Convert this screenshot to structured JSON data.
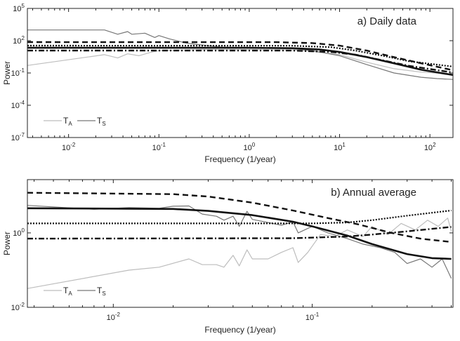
{
  "chart_data": [
    {
      "type": "line",
      "title": "a) Daily data",
      "xlabel": "Frequency (1/year)",
      "ylabel": "Power",
      "xscale": "log",
      "yscale": "log",
      "xlim": [
        0.0035,
        180
      ],
      "ylim": [
        1e-07,
        100000.0
      ],
      "xticks": [
        0.01,
        0.1,
        1,
        10,
        100
      ],
      "xtick_labels": [
        [
          "10",
          "-2"
        ],
        [
          "10",
          "-1"
        ],
        [
          "10",
          "0"
        ],
        [
          "10",
          "1"
        ],
        [
          "10",
          "2"
        ]
      ],
      "yticks": [
        100000.0,
        100,
        0.1,
        0.0001,
        1e-07
      ],
      "ytick_labels": [
        [
          "10",
          "5"
        ],
        [
          "10",
          "2"
        ],
        [
          "10",
          "-1"
        ],
        [
          "10",
          "-4"
        ],
        [
          "10",
          "-7"
        ]
      ],
      "legend": {
        "placement": "bottom-left",
        "entries": [
          {
            "base": "T",
            "sub": "A"
          },
          {
            "base": "T",
            "sub": "S"
          }
        ]
      },
      "series": [
        {
          "name": "TA",
          "style": "light",
          "color": "#bdbdbd",
          "points": [
            [
              0.0035,
              0.5
            ],
            [
              0.025,
              5
            ],
            [
              0.035,
              2.5
            ],
            [
              0.045,
              6
            ],
            [
              0.06,
              4
            ],
            [
              0.08,
              8
            ],
            [
              0.1,
              12
            ],
            [
              0.3,
              15
            ],
            [
              1,
              15
            ],
            [
              3,
              14
            ],
            [
              5,
              10
            ],
            [
              10,
              5
            ],
            [
              20,
              1
            ],
            [
              40,
              0.25
            ],
            [
              80,
              0.12
            ],
            [
              180,
              0.08
            ]
          ]
        },
        {
          "name": "TS",
          "style": "dark",
          "color": "#777777",
          "points": [
            [
              0.0035,
              1000
            ],
            [
              0.025,
              1000
            ],
            [
              0.035,
              400
            ],
            [
              0.045,
              700
            ],
            [
              0.05,
              400
            ],
            [
              0.07,
              500
            ],
            [
              0.09,
              200
            ],
            [
              0.1,
              300
            ],
            [
              0.13,
              150
            ],
            [
              0.2,
              60
            ],
            [
              0.3,
              40
            ],
            [
              0.5,
              25
            ],
            [
              1,
              22
            ],
            [
              3,
              18
            ],
            [
              5,
              12
            ],
            [
              10,
              4
            ],
            [
              20,
              0.6
            ],
            [
              40,
              0.1
            ],
            [
              80,
              0.04
            ],
            [
              120,
              0.03
            ],
            [
              180,
              0.025
            ]
          ]
        },
        {
          "style": "dashed",
          "color": "#111111",
          "points": [
            [
              0.0035,
              74
            ],
            [
              2,
              73
            ],
            [
              5,
              60
            ],
            [
              10,
              35
            ],
            [
              20,
              12
            ],
            [
              40,
              3
            ],
            [
              80,
              0.8
            ],
            [
              180,
              0.18
            ]
          ]
        },
        {
          "style": "dotted",
          "color": "#111111",
          "points": [
            [
              0.0035,
              35
            ],
            [
              3,
              34
            ],
            [
              8,
              25
            ],
            [
              15,
              12
            ],
            [
              30,
              4
            ],
            [
              60,
              1.2
            ],
            [
              180,
              0.39
            ]
          ]
        },
        {
          "style": "dashdot",
          "color": "#111111",
          "points": [
            [
              0.0035,
              12
            ],
            [
              3,
              12
            ],
            [
              8,
              9
            ],
            [
              15,
              5
            ],
            [
              30,
              1.5
            ],
            [
              60,
              0.45
            ],
            [
              180,
              0.11
            ]
          ]
        },
        {
          "style": "solid",
          "color": "#111111",
          "points": [
            [
              0.0035,
              22
            ],
            [
              1,
              22
            ],
            [
              3,
              20
            ],
            [
              6,
              15
            ],
            [
              10,
              9
            ],
            [
              20,
              3
            ],
            [
              40,
              0.8
            ],
            [
              80,
              0.2
            ],
            [
              180,
              0.065
            ]
          ]
        }
      ]
    },
    {
      "type": "line",
      "title": "b) Annual average",
      "xlabel": "Frequency (1/year)",
      "ylabel": "Power",
      "xscale": "log",
      "yscale": "log",
      "xlim": [
        0.0037,
        0.51
      ],
      "ylim": [
        0.01,
        27
      ],
      "xticks": [
        0.01,
        0.1
      ],
      "xtick_labels": [
        [
          "10",
          "-2"
        ],
        [
          "10",
          "-1"
        ]
      ],
      "yticks": [
        1,
        0.01
      ],
      "ytick_labels": [
        [
          "10",
          "0"
        ],
        [
          "10",
          "-2"
        ]
      ],
      "legend": {
        "placement": "bottom-left",
        "entries": [
          {
            "base": "T",
            "sub": "A"
          },
          {
            "base": "T",
            "sub": "S"
          }
        ]
      },
      "series": [
        {
          "name": "TA",
          "style": "light",
          "color": "#bdbdbd",
          "points": [
            [
              0.0037,
              0.032
            ],
            [
              0.012,
              0.1
            ],
            [
              0.017,
              0.12
            ],
            [
              0.024,
              0.2
            ],
            [
              0.028,
              0.14
            ],
            [
              0.033,
              0.14
            ],
            [
              0.036,
              0.12
            ],
            [
              0.04,
              0.25
            ],
            [
              0.043,
              0.13
            ],
            [
              0.047,
              0.35
            ],
            [
              0.05,
              0.2
            ],
            [
              0.06,
              0.2
            ],
            [
              0.07,
              0.3
            ],
            [
              0.08,
              0.4
            ],
            [
              0.085,
              0.16
            ],
            [
              0.095,
              0.3
            ],
            [
              0.11,
              0.9
            ],
            [
              0.13,
              0.8
            ],
            [
              0.15,
              1.2
            ],
            [
              0.18,
              0.8
            ],
            [
              0.2,
              1.5
            ],
            [
              0.24,
              0.9
            ],
            [
              0.28,
              1.8
            ],
            [
              0.33,
              1.2
            ],
            [
              0.38,
              2.2
            ],
            [
              0.43,
              1.5
            ],
            [
              0.48,
              2.5
            ],
            [
              0.5,
              1.1
            ]
          ]
        },
        {
          "name": "TS",
          "style": "dark",
          "color": "#777777",
          "points": [
            [
              0.0037,
              5.5
            ],
            [
              0.008,
              4.3
            ],
            [
              0.012,
              4.8
            ],
            [
              0.017,
              4.6
            ],
            [
              0.02,
              5.2
            ],
            [
              0.024,
              5.3
            ],
            [
              0.028,
              3.2
            ],
            [
              0.033,
              2.8
            ],
            [
              0.036,
              2.2
            ],
            [
              0.04,
              2.8
            ],
            [
              0.043,
              1.5
            ],
            [
              0.047,
              3.8
            ],
            [
              0.05,
              2.3
            ],
            [
              0.06,
              1.9
            ],
            [
              0.07,
              1.6
            ],
            [
              0.08,
              2.0
            ],
            [
              0.085,
              1.0
            ],
            [
              0.1,
              1.5
            ],
            [
              0.12,
              1.0
            ],
            [
              0.15,
              0.7
            ],
            [
              0.18,
              0.5
            ],
            [
              0.22,
              0.4
            ],
            [
              0.26,
              0.3
            ],
            [
              0.3,
              0.15
            ],
            [
              0.35,
              0.2
            ],
            [
              0.4,
              0.12
            ],
            [
              0.45,
              0.2
            ],
            [
              0.5,
              0.06
            ]
          ]
        },
        {
          "style": "dashed",
          "color": "#111111",
          "points": [
            [
              0.0037,
              12
            ],
            [
              0.02,
              11
            ],
            [
              0.03,
              9.5
            ],
            [
              0.05,
              6.5
            ],
            [
              0.08,
              4
            ],
            [
              0.12,
              2.5
            ],
            [
              0.17,
              1.7
            ],
            [
              0.25,
              1.0
            ],
            [
              0.35,
              0.7
            ],
            [
              0.5,
              0.57
            ]
          ]
        },
        {
          "style": "dotted",
          "color": "#111111",
          "points": [
            [
              0.0037,
              1.8
            ],
            [
              0.1,
              1.8
            ],
            [
              0.15,
              1.9
            ],
            [
              0.2,
              2.2
            ],
            [
              0.3,
              2.9
            ],
            [
              0.5,
              4.0
            ]
          ]
        },
        {
          "style": "dashdot",
          "color": "#111111",
          "points": [
            [
              0.0037,
              0.7
            ],
            [
              0.08,
              0.72
            ],
            [
              0.15,
              0.8
            ],
            [
              0.2,
              0.9
            ],
            [
              0.3,
              1.1
            ],
            [
              0.5,
              1.45
            ]
          ]
        },
        {
          "style": "solid",
          "color": "#111111",
          "points": [
            [
              0.0037,
              4.6
            ],
            [
              0.02,
              4.4
            ],
            [
              0.03,
              3.9
            ],
            [
              0.05,
              3.0
            ],
            [
              0.08,
              2.0
            ],
            [
              0.1,
              1.5
            ],
            [
              0.15,
              0.85
            ],
            [
              0.2,
              0.5
            ],
            [
              0.3,
              0.27
            ],
            [
              0.4,
              0.21
            ],
            [
              0.5,
              0.2
            ]
          ]
        }
      ]
    }
  ]
}
